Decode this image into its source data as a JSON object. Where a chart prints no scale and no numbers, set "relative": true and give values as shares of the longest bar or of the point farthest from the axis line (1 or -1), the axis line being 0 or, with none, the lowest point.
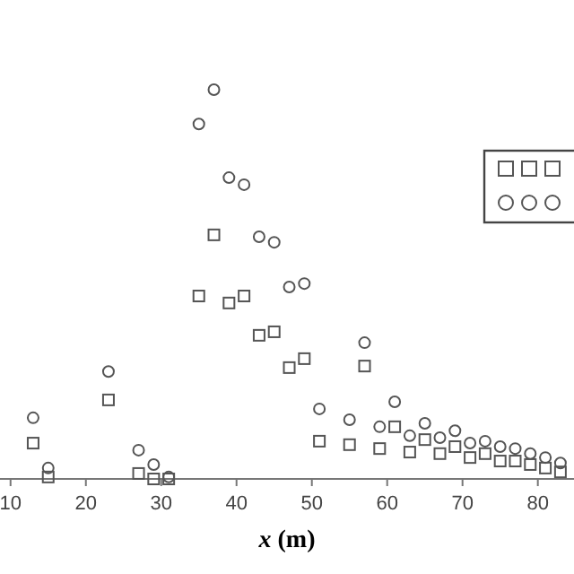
{
  "chart_data": {
    "type": "scatter",
    "relative": true,
    "xlabel": "x (m)",
    "xlim": [
      8.6,
      84.8
    ],
    "xticks": [
      10,
      20,
      30,
      40,
      50,
      60,
      70,
      80
    ],
    "grid": false,
    "x": [
      13,
      15,
      23,
      27,
      29,
      31,
      35,
      37,
      39,
      41,
      43,
      45,
      47,
      49,
      51,
      55,
      57,
      59,
      61,
      63,
      65,
      67,
      69,
      71,
      73,
      75,
      77,
      79,
      81,
      83
    ],
    "series": [
      {
        "color": "#555555",
        "marker": "square",
        "values": [
          0.092,
          0.005,
          0.203,
          0.014,
          0,
          0,
          0.47,
          0.627,
          0.452,
          0.47,
          0.369,
          0.378,
          0.286,
          0.309,
          0.097,
          0.088,
          0.29,
          0.078,
          0.134,
          0.069,
          0.101,
          0.065,
          0.083,
          0.055,
          0.065,
          0.046,
          0.046,
          0.037,
          0.028,
          0.018
        ]
      },
      {
        "color": "#555555",
        "marker": "circle",
        "values": [
          0.157,
          0.028,
          0.276,
          0.074,
          0.037,
          0.005,
          0.912,
          1,
          0.774,
          0.756,
          0.622,
          0.608,
          0.493,
          0.502,
          0.18,
          0.152,
          0.35,
          0.134,
          0.198,
          0.111,
          0.143,
          0.106,
          0.124,
          0.092,
          0.097,
          0.083,
          0.078,
          0.065,
          0.055,
          0.041
        ]
      }
    ]
  }
}
